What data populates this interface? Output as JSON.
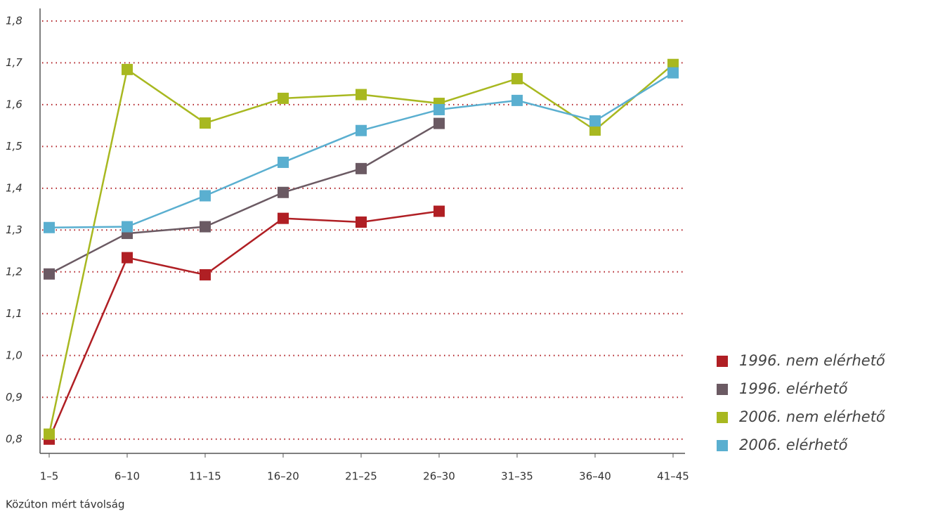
{
  "chart_data": {
    "type": "line",
    "x_label": "Közúton mért távolság",
    "categories": [
      "1–5",
      "6–10",
      "11–15",
      "16–20",
      "21–25",
      "26–30",
      "31–35",
      "36–40",
      "41–45"
    ],
    "series": [
      {
        "name": "1996. nem elérhető",
        "color": "#b01f24",
        "values": [
          0.8,
          1.234,
          1.193,
          1.328,
          1.319,
          1.345,
          null,
          null,
          null
        ]
      },
      {
        "name": "1996. elérhető",
        "color": "#6b5a63",
        "values": [
          1.195,
          1.292,
          1.308,
          1.39,
          1.447,
          1.555,
          null,
          null,
          null
        ]
      },
      {
        "name": "2006. nem elérhető",
        "color": "#a8b820",
        "values": [
          0.812,
          1.684,
          1.556,
          1.615,
          1.624,
          1.603,
          1.662,
          1.539,
          1.696
        ]
      },
      {
        "name": "2006. elérhető",
        "color": "#5aafd0",
        "values": [
          1.306,
          1.308,
          1.382,
          1.462,
          1.538,
          1.588,
          1.61,
          1.561,
          1.676
        ]
      }
    ],
    "ylim": [
      0.766,
      1.83
    ],
    "yticks": [
      {
        "value": 0.8,
        "label": "0,8"
      },
      {
        "value": 0.9,
        "label": "0,9"
      },
      {
        "value": 1.0,
        "label": "1,0"
      },
      {
        "value": 1.1,
        "label": "1,1"
      },
      {
        "value": 1.2,
        "label": "1,2"
      },
      {
        "value": 1.3,
        "label": "1,3"
      },
      {
        "value": 1.4,
        "label": "1,4"
      },
      {
        "value": 1.5,
        "label": "1,5"
      },
      {
        "value": 1.6,
        "label": "1,6"
      },
      {
        "value": 1.7,
        "label": "1,7"
      },
      {
        "value": 1.8,
        "label": "1,8"
      }
    ],
    "grid": true,
    "grid_color": "#b01f24",
    "legend": "right"
  }
}
